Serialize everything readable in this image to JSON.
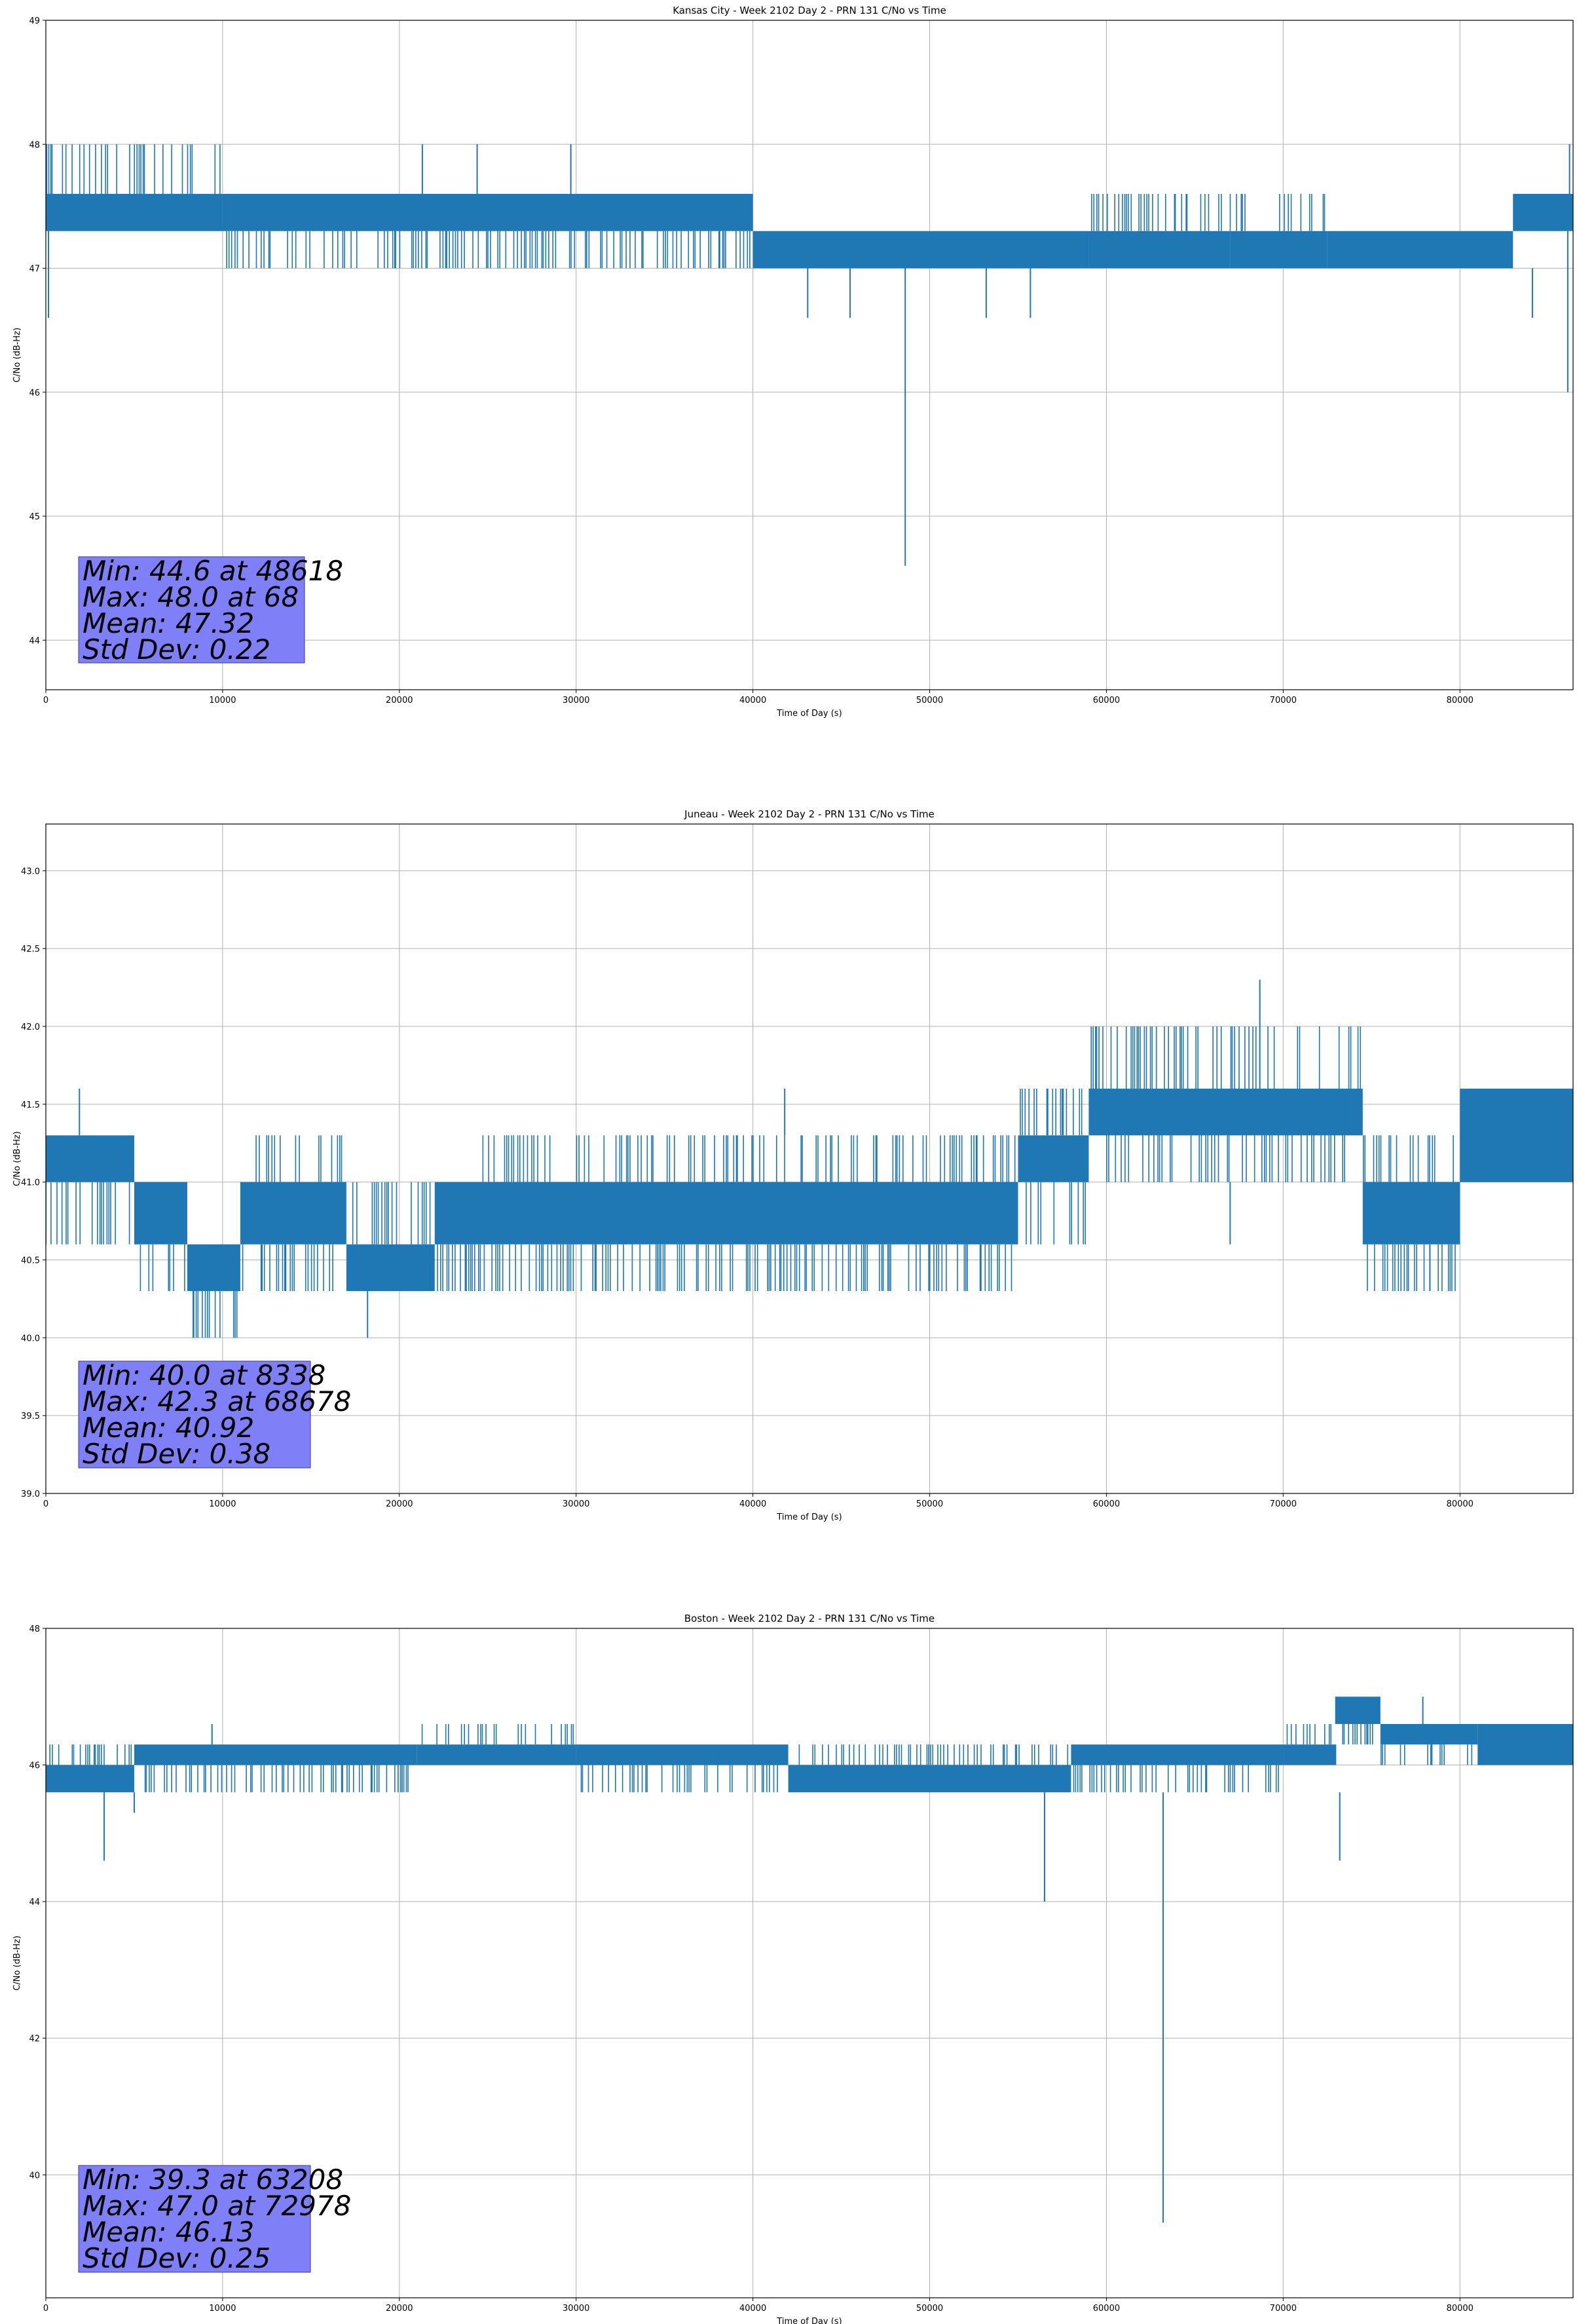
{
  "chart_data": [
    {
      "type": "line",
      "title": "Kansas City - Week 2102 Day 2 - PRN 131 C/No vs Time",
      "xlabel": "Time of Day (s)",
      "ylabel": "C/No (dB-Hz)",
      "xlim": [
        0,
        86400
      ],
      "ylim": [
        43.6,
        49
      ],
      "xticks": [
        0,
        10000,
        20000,
        30000,
        40000,
        50000,
        60000,
        70000,
        80000
      ],
      "yticks": [
        44,
        45,
        46,
        47,
        48,
        49
      ],
      "ytick_decimals": 0,
      "grid": true,
      "color": "#1f77b4",
      "band_segments": [
        {
          "x0": 0,
          "x1": 10000,
          "lo": 47.3,
          "hi": 48.0,
          "core_lo": 47.3,
          "core_hi": 47.6
        },
        {
          "x0": 10000,
          "x1": 40000,
          "lo": 47.0,
          "hi": 47.6,
          "core_lo": 47.3,
          "core_hi": 47.6
        },
        {
          "x0": 40000,
          "x1": 59000,
          "lo": 47.0,
          "hi": 47.3,
          "core_lo": 47.0,
          "core_hi": 47.3
        },
        {
          "x0": 59000,
          "x1": 67000,
          "lo": 47.0,
          "hi": 47.6,
          "core_lo": 47.0,
          "core_hi": 47.3
        },
        {
          "x0": 67000,
          "x1": 72500,
          "lo": 47.0,
          "hi": 47.6,
          "core_lo": 47.0,
          "core_hi": 47.3
        },
        {
          "x0": 72500,
          "x1": 83000,
          "lo": 47.0,
          "hi": 47.3,
          "core_lo": 47.0,
          "core_hi": 47.3
        },
        {
          "x0": 83000,
          "x1": 86400,
          "lo": 47.3,
          "hi": 47.6,
          "core_lo": 47.3,
          "core_hi": 47.6
        }
      ],
      "spikes": [
        {
          "x": 150,
          "y0": 47.3,
          "y1": 46.6
        },
        {
          "x": 21300,
          "y0": 47.6,
          "y1": 48.0
        },
        {
          "x": 24400,
          "y0": 47.6,
          "y1": 48.0
        },
        {
          "x": 29700,
          "y0": 47.6,
          "y1": 48.0
        },
        {
          "x": 43100,
          "y0": 47.0,
          "y1": 46.6
        },
        {
          "x": 45500,
          "y0": 47.0,
          "y1": 46.6
        },
        {
          "x": 48618,
          "y0": 47.0,
          "y1": 44.6
        },
        {
          "x": 53200,
          "y0": 47.0,
          "y1": 46.6
        },
        {
          "x": 55700,
          "y0": 47.0,
          "y1": 46.6
        },
        {
          "x": 84100,
          "y0": 47.0,
          "y1": 46.6
        },
        {
          "x": 86100,
          "y0": 47.3,
          "y1": 46.0
        },
        {
          "x": 86200,
          "y0": 47.6,
          "y1": 48.0
        }
      ],
      "stats": [
        "Min: 44.6 at 48618",
        "Max: 48.0 at 68",
        "Mean: 47.32",
        "Std Dev: 0.22"
      ]
    },
    {
      "type": "line",
      "title": "Juneau - Week 2102 Day 2 - PRN 131 C/No vs Time",
      "xlabel": "Time of Day (s)",
      "ylabel": "C/No (dB-Hz)",
      "xlim": [
        0,
        86400
      ],
      "ylim": [
        39.0,
        43.3
      ],
      "xticks": [
        0,
        10000,
        20000,
        30000,
        40000,
        50000,
        60000,
        70000,
        80000
      ],
      "yticks": [
        39.0,
        39.5,
        40.0,
        40.5,
        41.0,
        41.5,
        42.0,
        42.5,
        43.0
      ],
      "ytick_decimals": 1,
      "grid": true,
      "color": "#1f77b4",
      "band_segments": [
        {
          "x0": 0,
          "x1": 5000,
          "lo": 40.6,
          "hi": 41.3,
          "core_lo": 41.0,
          "core_hi": 41.3
        },
        {
          "x0": 5000,
          "x1": 8000,
          "lo": 40.3,
          "hi": 41.0,
          "core_lo": 40.6,
          "core_hi": 41.0
        },
        {
          "x0": 8000,
          "x1": 11000,
          "lo": 40.0,
          "hi": 40.6,
          "core_lo": 40.3,
          "core_hi": 40.6
        },
        {
          "x0": 11000,
          "x1": 17000,
          "lo": 40.3,
          "hi": 41.3,
          "core_lo": 40.6,
          "core_hi": 41.0
        },
        {
          "x0": 17000,
          "x1": 22000,
          "lo": 40.3,
          "hi": 41.0,
          "core_lo": 40.3,
          "core_hi": 40.6
        },
        {
          "x0": 22000,
          "x1": 55000,
          "lo": 40.3,
          "hi": 41.3,
          "core_lo": 40.6,
          "core_hi": 41.0
        },
        {
          "x0": 55000,
          "x1": 59000,
          "lo": 40.6,
          "hi": 41.6,
          "core_lo": 41.0,
          "core_hi": 41.3
        },
        {
          "x0": 59000,
          "x1": 74500,
          "lo": 41.0,
          "hi": 42.0,
          "core_lo": 41.3,
          "core_hi": 41.6
        },
        {
          "x0": 74500,
          "x1": 80000,
          "lo": 40.3,
          "hi": 41.3,
          "core_lo": 40.6,
          "core_hi": 41.0
        },
        {
          "x0": 80000,
          "x1": 86400,
          "lo": 41.0,
          "hi": 41.6,
          "core_lo": 41.0,
          "core_hi": 41.6
        }
      ],
      "spikes": [
        {
          "x": 1900,
          "y0": 41.3,
          "y1": 41.6
        },
        {
          "x": 8338,
          "y0": 40.3,
          "y1": 40.0
        },
        {
          "x": 18200,
          "y0": 40.3,
          "y1": 40.0
        },
        {
          "x": 41800,
          "y0": 41.3,
          "y1": 41.6
        },
        {
          "x": 67000,
          "y0": 41.0,
          "y1": 40.6
        },
        {
          "x": 68678,
          "y0": 41.6,
          "y1": 42.3
        },
        {
          "x": 78300,
          "y0": 40.6,
          "y1": 40.3
        }
      ],
      "stats": [
        "Min: 40.0 at 8338",
        "Max: 42.3 at 68678",
        "Mean: 40.92",
        "Std Dev: 0.38"
      ]
    },
    {
      "type": "line",
      "title": "Boston - Week 2102 Day 2 - PRN 131 C/No vs Time",
      "xlabel": "Time of Day (s)",
      "ylabel": "C/No (dB-Hz)",
      "xlim": [
        0,
        86400
      ],
      "ylim": [
        38.2,
        48
      ],
      "xticks": [
        0,
        10000,
        20000,
        30000,
        40000,
        50000,
        60000,
        70000,
        80000
      ],
      "yticks": [
        40,
        42,
        44,
        46,
        48
      ],
      "ytick_decimals": 0,
      "grid": true,
      "color": "#1f77b4",
      "band_segments": [
        {
          "x0": 0,
          "x1": 5000,
          "lo": 45.6,
          "hi": 46.3,
          "core_lo": 45.6,
          "core_hi": 46.0
        },
        {
          "x0": 5000,
          "x1": 21000,
          "lo": 45.6,
          "hi": 46.3,
          "core_lo": 46.0,
          "core_hi": 46.3
        },
        {
          "x0": 21000,
          "x1": 30000,
          "lo": 46.0,
          "hi": 46.6,
          "core_lo": 46.0,
          "core_hi": 46.3
        },
        {
          "x0": 30000,
          "x1": 42000,
          "lo": 45.6,
          "hi": 46.3,
          "core_lo": 46.0,
          "core_hi": 46.3
        },
        {
          "x0": 42000,
          "x1": 58000,
          "lo": 45.6,
          "hi": 46.3,
          "core_lo": 45.6,
          "core_hi": 46.0
        },
        {
          "x0": 58000,
          "x1": 70000,
          "lo": 45.6,
          "hi": 46.3,
          "core_lo": 46.0,
          "core_hi": 46.3
        },
        {
          "x0": 70000,
          "x1": 73000,
          "lo": 46.0,
          "hi": 46.6,
          "core_lo": 46.0,
          "core_hi": 46.3
        },
        {
          "x0": 73000,
          "x1": 75500,
          "lo": 46.3,
          "hi": 47.0,
          "core_lo": 46.6,
          "core_hi": 47.0
        },
        {
          "x0": 75500,
          "x1": 81000,
          "lo": 46.0,
          "hi": 46.6,
          "core_lo": 46.3,
          "core_hi": 46.6
        },
        {
          "x0": 81000,
          "x1": 86400,
          "lo": 46.0,
          "hi": 46.6,
          "core_lo": 46.0,
          "core_hi": 46.6
        }
      ],
      "spikes": [
        {
          "x": 3300,
          "y0": 45.6,
          "y1": 44.6
        },
        {
          "x": 5000,
          "y0": 45.6,
          "y1": 45.3
        },
        {
          "x": 9400,
          "y0": 46.3,
          "y1": 46.6
        },
        {
          "x": 56500,
          "y0": 45.6,
          "y1": 44.0
        },
        {
          "x": 63208,
          "y0": 45.6,
          "y1": 39.3
        },
        {
          "x": 72978,
          "y0": 46.6,
          "y1": 47.0
        },
        {
          "x": 73200,
          "y0": 45.6,
          "y1": 44.6
        },
        {
          "x": 77900,
          "y0": 46.6,
          "y1": 47.0
        }
      ],
      "stats": [
        "Min: 39.3 at 63208",
        "Max: 47.0 at 72978",
        "Mean: 46.13",
        "Std Dev: 0.25"
      ]
    }
  ]
}
